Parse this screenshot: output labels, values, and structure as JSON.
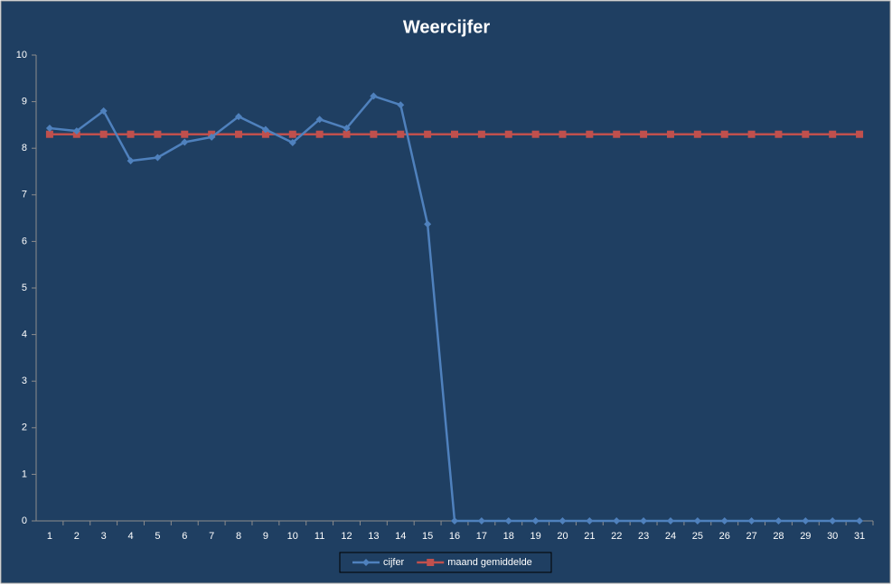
{
  "chart_data": {
    "type": "line",
    "title": "Weercijfer",
    "categories": [
      "1",
      "2",
      "3",
      "4",
      "5",
      "6",
      "7",
      "8",
      "9",
      "10",
      "11",
      "12",
      "13",
      "14",
      "15",
      "16",
      "17",
      "18",
      "19",
      "20",
      "21",
      "22",
      "23",
      "24",
      "25",
      "26",
      "27",
      "28",
      "29",
      "30",
      "31"
    ],
    "series": [
      {
        "name": "cijfer",
        "color": "#4f81bd",
        "marker": "diamond",
        "values": [
          8.43,
          8.37,
          8.8,
          7.73,
          7.8,
          8.13,
          8.24,
          8.68,
          8.4,
          8.12,
          8.62,
          8.43,
          9.12,
          8.93,
          6.37,
          0,
          0,
          0,
          0,
          0,
          0,
          0,
          0,
          0,
          0,
          0,
          0,
          0,
          0,
          0,
          0
        ]
      },
      {
        "name": "maand gemiddelde",
        "color": "#c0504d",
        "marker": "square",
        "values": [
          8.3,
          8.3,
          8.3,
          8.3,
          8.3,
          8.3,
          8.3,
          8.3,
          8.3,
          8.3,
          8.3,
          8.3,
          8.3,
          8.3,
          8.3,
          8.3,
          8.3,
          8.3,
          8.3,
          8.3,
          8.3,
          8.3,
          8.3,
          8.3,
          8.3,
          8.3,
          8.3,
          8.3,
          8.3,
          8.3,
          8.3
        ]
      }
    ],
    "ylim": [
      0,
      10
    ],
    "yticks": [
      0,
      1,
      2,
      3,
      4,
      5,
      6,
      7,
      8,
      9,
      10
    ],
    "grid": false,
    "legend": "bottom",
    "background": "#1f3f62"
  }
}
